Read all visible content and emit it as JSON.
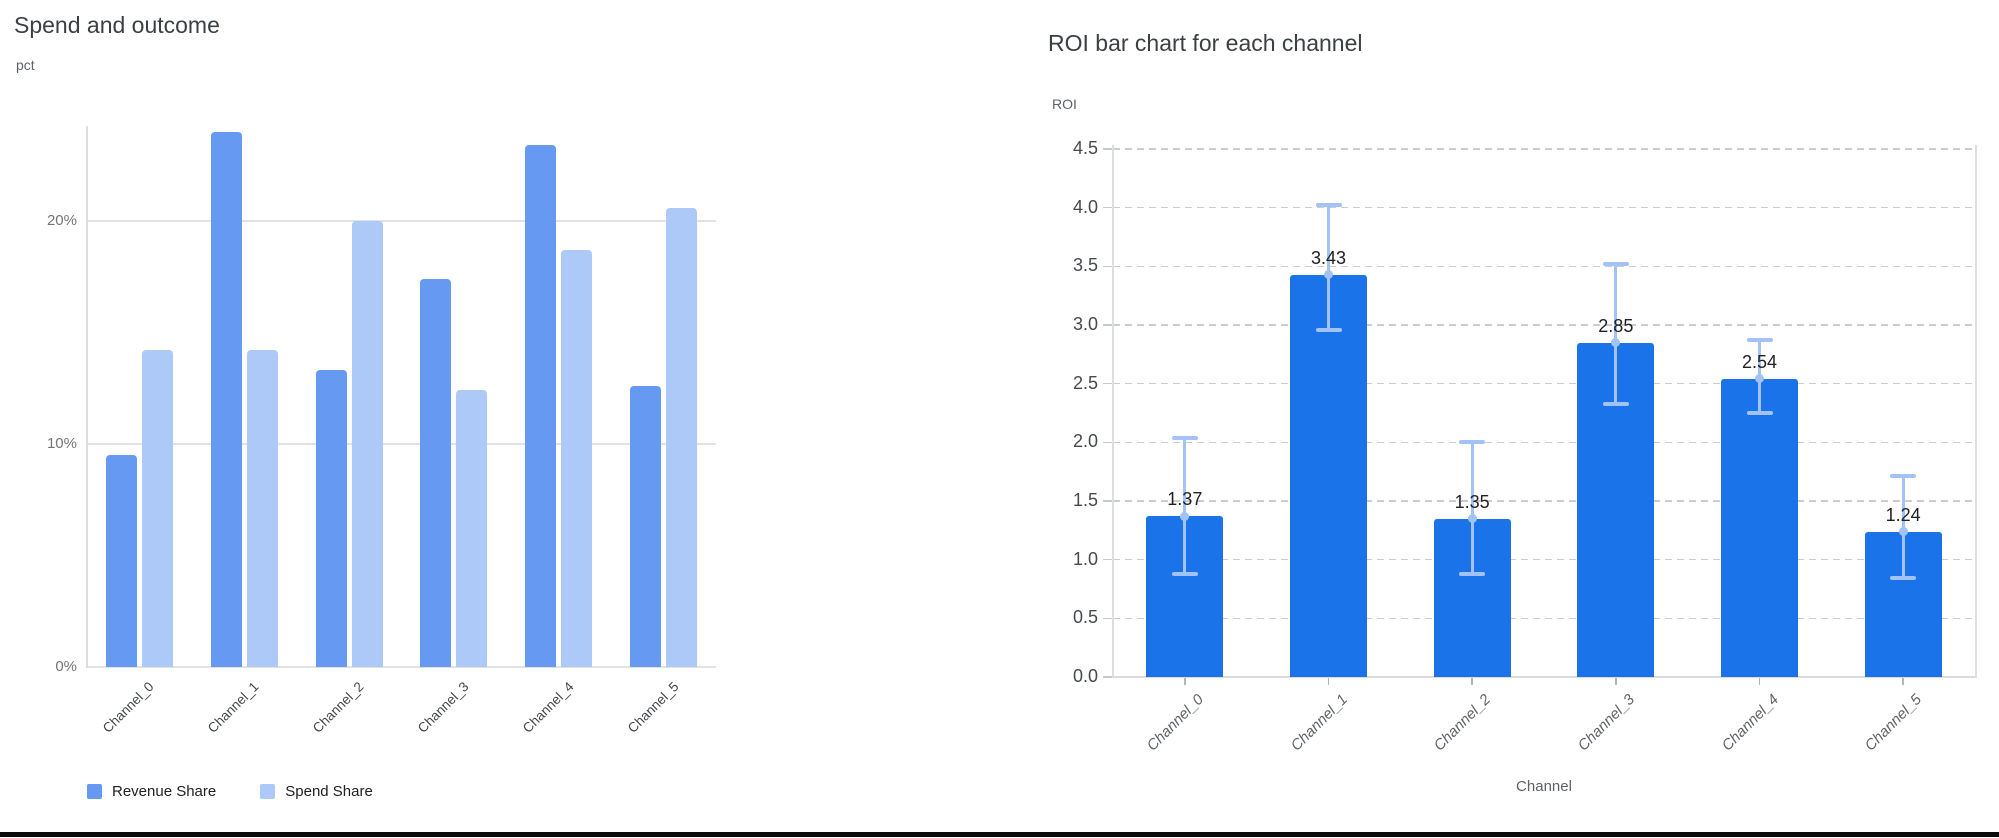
{
  "page": {
    "background": "#ffffff",
    "bottom_rule_color": "#0a0a0a"
  },
  "chart_data": [
    {
      "id": "spend-and-outcome",
      "type": "bar",
      "title": "Spend and outcome",
      "ylabel": "pct",
      "xlabel": "",
      "categories": [
        "Channel_0",
        "Channel_1",
        "Channel_2",
        "Channel_3",
        "Channel_4",
        "Channel_5"
      ],
      "series": [
        {
          "name": "Revenue Share",
          "color": "#6699f2",
          "values": [
            9.5,
            24.0,
            13.3,
            17.4,
            23.4,
            12.6
          ]
        },
        {
          "name": "Spend Share",
          "color": "#adc9f8",
          "values": [
            14.2,
            14.2,
            20.0,
            12.4,
            18.7,
            20.6
          ]
        }
      ],
      "value_unit": "%",
      "ylim": [
        0,
        24.2
      ],
      "yticks": [
        {
          "value": 0,
          "label": "0%"
        },
        {
          "value": 10,
          "label": "10%"
        },
        {
          "value": 20,
          "label": "20%"
        }
      ],
      "grid": "horizontal-solid",
      "legend_position": "bottom-left"
    },
    {
      "id": "roi-by-channel",
      "type": "bar",
      "title": "ROI bar chart for each channel",
      "ylabel": "ROI",
      "xlabel": "Channel",
      "categories": [
        "Channel_0",
        "Channel_1",
        "Channel_2",
        "Channel_3",
        "Channel_4",
        "Channel_5"
      ],
      "values": [
        1.37,
        3.43,
        1.35,
        2.85,
        2.54,
        1.24
      ],
      "data_labels": [
        "1.37",
        "3.43",
        "1.35",
        "2.85",
        "2.54",
        "1.24"
      ],
      "error_low": [
        0.88,
        2.96,
        0.88,
        2.33,
        2.25,
        0.84
      ],
      "error_high": [
        2.04,
        4.02,
        2.0,
        3.52,
        2.87,
        1.71
      ],
      "ylim": [
        0,
        4.5
      ],
      "ytick_step": 0.5,
      "ytick_labels": [
        "0.0",
        "0.5",
        "1.0",
        "1.5",
        "2.0",
        "2.5",
        "3.0",
        "3.5",
        "4.0",
        "4.5"
      ],
      "bar_color": "#1a73e8",
      "error_bar_color": "#a3c3f8",
      "grid": "horizontal-dashed",
      "legend_position": "none"
    }
  ]
}
